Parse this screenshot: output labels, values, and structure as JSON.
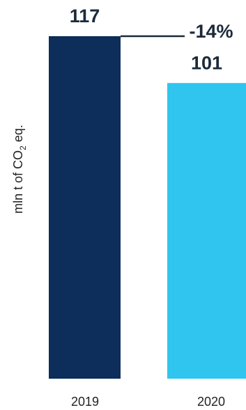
{
  "chart_data": {
    "type": "bar",
    "categories": [
      "2019",
      "2020"
    ],
    "values": [
      117,
      101
    ],
    "value_labels": [
      "117",
      "101"
    ],
    "ylabel": {
      "prefix": "mln t of CO",
      "subscript": "2",
      "suffix": " eq."
    },
    "ylim": [
      0,
      117
    ],
    "change_label": "-14%",
    "colors": [
      "#0d2d5a",
      "#2fc5ef"
    ],
    "arrow_color": "#1b2a3a",
    "grid": false,
    "legend": "none"
  }
}
